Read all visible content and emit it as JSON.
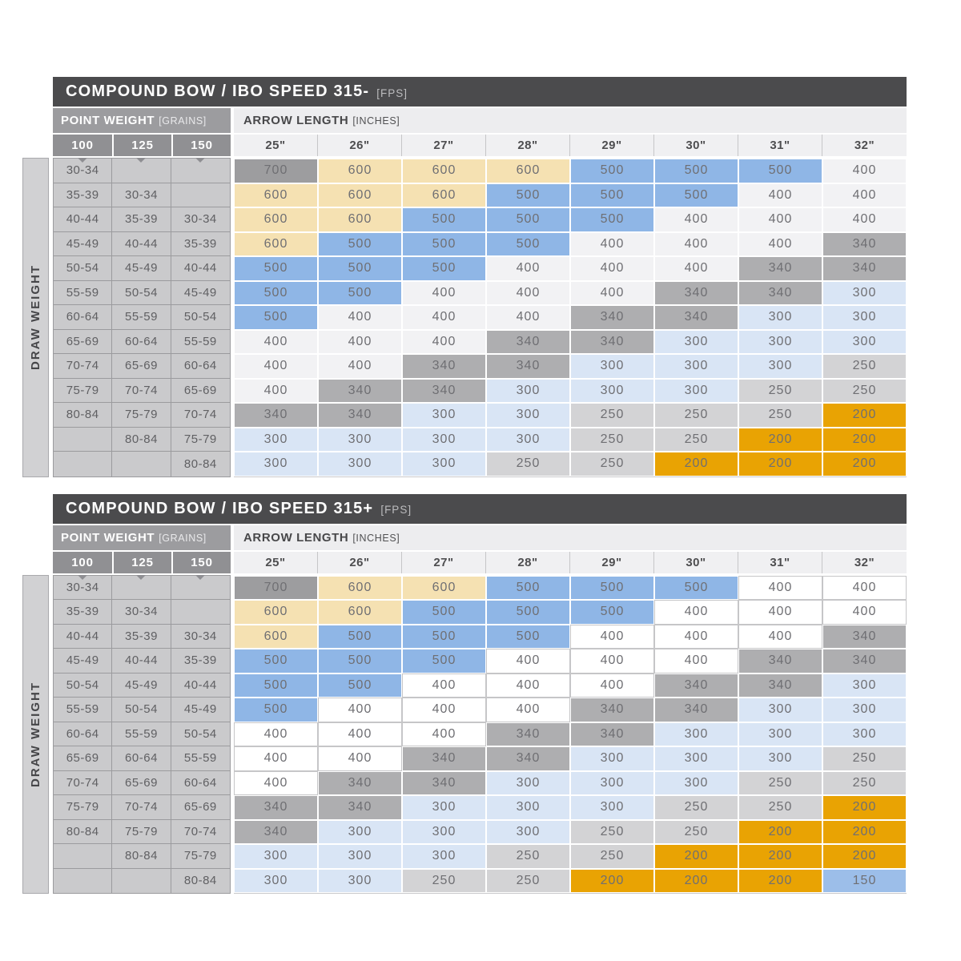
{
  "shared": {
    "point_weight_label": "POINT WEIGHT",
    "point_weight_unit": "[GRAINS]",
    "arrow_length_label": "ARROW LENGTH",
    "arrow_length_unit": "[INCHES]",
    "draw_weight_label": "DRAW WEIGHT"
  },
  "value_styles": {
    "700": {
      "bg": "#9D9D9F",
      "border": "#FFFFFF"
    },
    "600": {
      "bg": "#F5E1B2",
      "border": "#FFFFFF"
    },
    "500": {
      "bg": "#8FB6E6",
      "border": "#FFFFFF"
    },
    "340": {
      "bg": "#AEAEB0",
      "border": "#FFFFFF"
    },
    "300": {
      "bg": "#D9E5F5",
      "border": "#FFFFFF"
    },
    "250": {
      "bg": "#D3D3D5",
      "border": "#FFFFFF"
    },
    "200": {
      "bg": "#E9A303",
      "border": "#FFFFFF"
    },
    "150": {
      "bg": "#9CBEE9",
      "border": "#FFFFFF"
    }
  },
  "chart_data": [
    {
      "type": "table",
      "title": "COMPOUND BOW / IBO SPEED 315-",
      "unit": "[FPS]",
      "row_header": "DRAW WEIGHT",
      "point_weight_columns": [
        "100",
        "125",
        "150"
      ],
      "arrow_length_columns": [
        "25\"",
        "26\"",
        "27\"",
        "28\"",
        "29\"",
        "30\"",
        "31\"",
        "32\""
      ],
      "value_400_bg": "#F2F2F4",
      "value_400_border": "#FFFFFF",
      "rows": [
        {
          "draw_weights": [
            "30-34",
            "",
            ""
          ],
          "spines": [
            700,
            600,
            600,
            600,
            500,
            500,
            500,
            400
          ]
        },
        {
          "draw_weights": [
            "35-39",
            "30-34",
            ""
          ],
          "spines": [
            600,
            600,
            600,
            500,
            500,
            500,
            400,
            400
          ]
        },
        {
          "draw_weights": [
            "40-44",
            "35-39",
            "30-34"
          ],
          "spines": [
            600,
            600,
            500,
            500,
            500,
            400,
            400,
            400
          ]
        },
        {
          "draw_weights": [
            "45-49",
            "40-44",
            "35-39"
          ],
          "spines": [
            600,
            500,
            500,
            500,
            400,
            400,
            400,
            340
          ]
        },
        {
          "draw_weights": [
            "50-54",
            "45-49",
            "40-44"
          ],
          "spines": [
            500,
            500,
            500,
            400,
            400,
            400,
            340,
            340
          ]
        },
        {
          "draw_weights": [
            "55-59",
            "50-54",
            "45-49"
          ],
          "spines": [
            500,
            500,
            400,
            400,
            400,
            340,
            340,
            300
          ]
        },
        {
          "draw_weights": [
            "60-64",
            "55-59",
            "50-54"
          ],
          "spines": [
            500,
            400,
            400,
            400,
            340,
            340,
            300,
            300
          ]
        },
        {
          "draw_weights": [
            "65-69",
            "60-64",
            "55-59"
          ],
          "spines": [
            400,
            400,
            400,
            340,
            340,
            300,
            300,
            300
          ]
        },
        {
          "draw_weights": [
            "70-74",
            "65-69",
            "60-64"
          ],
          "spines": [
            400,
            400,
            340,
            340,
            300,
            300,
            300,
            250
          ]
        },
        {
          "draw_weights": [
            "75-79",
            "70-74",
            "65-69"
          ],
          "spines": [
            400,
            340,
            340,
            300,
            300,
            300,
            250,
            250
          ]
        },
        {
          "draw_weights": [
            "80-84",
            "75-79",
            "70-74"
          ],
          "spines": [
            340,
            340,
            300,
            300,
            250,
            250,
            250,
            200
          ]
        },
        {
          "draw_weights": [
            "",
            "80-84",
            "75-79"
          ],
          "spines": [
            300,
            300,
            300,
            300,
            250,
            250,
            200,
            200
          ]
        },
        {
          "draw_weights": [
            "",
            "",
            "80-84"
          ],
          "spines": [
            300,
            300,
            300,
            250,
            250,
            200,
            200,
            200
          ]
        }
      ]
    },
    {
      "type": "table",
      "title": "COMPOUND BOW / IBO SPEED 315+",
      "unit": "[FPS]",
      "row_header": "DRAW WEIGHT",
      "point_weight_columns": [
        "100",
        "125",
        "150"
      ],
      "arrow_length_columns": [
        "25\"",
        "26\"",
        "27\"",
        "28\"",
        "29\"",
        "30\"",
        "31\"",
        "32\""
      ],
      "value_400_bg": "#FFFFFF",
      "value_400_border": "#C6C6C8",
      "rows": [
        {
          "draw_weights": [
            "30-34",
            "",
            ""
          ],
          "spines": [
            700,
            600,
            600,
            500,
            500,
            500,
            400,
            400
          ]
        },
        {
          "draw_weights": [
            "35-39",
            "30-34",
            ""
          ],
          "spines": [
            600,
            600,
            500,
            500,
            500,
            400,
            400,
            400
          ]
        },
        {
          "draw_weights": [
            "40-44",
            "35-39",
            "30-34"
          ],
          "spines": [
            600,
            500,
            500,
            500,
            400,
            400,
            400,
            340
          ]
        },
        {
          "draw_weights": [
            "45-49",
            "40-44",
            "35-39"
          ],
          "spines": [
            500,
            500,
            500,
            400,
            400,
            400,
            340,
            340
          ]
        },
        {
          "draw_weights": [
            "50-54",
            "45-49",
            "40-44"
          ],
          "spines": [
            500,
            500,
            400,
            400,
            400,
            340,
            340,
            300
          ]
        },
        {
          "draw_weights": [
            "55-59",
            "50-54",
            "45-49"
          ],
          "spines": [
            500,
            400,
            400,
            400,
            340,
            340,
            300,
            300
          ]
        },
        {
          "draw_weights": [
            "60-64",
            "55-59",
            "50-54"
          ],
          "spines": [
            400,
            400,
            400,
            340,
            340,
            300,
            300,
            300
          ]
        },
        {
          "draw_weights": [
            "65-69",
            "60-64",
            "55-59"
          ],
          "spines": [
            400,
            400,
            340,
            340,
            300,
            300,
            300,
            250
          ]
        },
        {
          "draw_weights": [
            "70-74",
            "65-69",
            "60-64"
          ],
          "spines": [
            400,
            340,
            340,
            300,
            300,
            300,
            250,
            250
          ]
        },
        {
          "draw_weights": [
            "75-79",
            "70-74",
            "65-69"
          ],
          "spines": [
            340,
            340,
            300,
            300,
            300,
            250,
            250,
            200
          ]
        },
        {
          "draw_weights": [
            "80-84",
            "75-79",
            "70-74"
          ],
          "spines": [
            340,
            300,
            300,
            300,
            250,
            250,
            200,
            200
          ]
        },
        {
          "draw_weights": [
            "",
            "80-84",
            "75-79"
          ],
          "spines": [
            300,
            300,
            300,
            250,
            250,
            200,
            200,
            200
          ]
        },
        {
          "draw_weights": [
            "",
            "",
            "80-84"
          ],
          "spines": [
            300,
            300,
            250,
            250,
            200,
            200,
            200,
            150
          ]
        }
      ]
    }
  ]
}
